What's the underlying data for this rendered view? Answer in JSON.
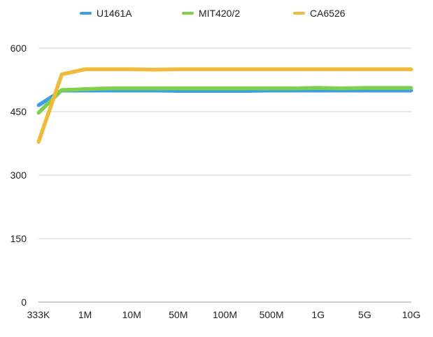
{
  "chart_data": {
    "type": "line",
    "title": "",
    "xlabel": "",
    "ylabel": "",
    "categories": [
      "333K",
      "",
      "1M",
      "",
      "10M",
      "",
      "50M",
      "",
      "100M",
      "",
      "500M",
      "",
      "1G",
      "",
      "5G",
      "",
      "10G"
    ],
    "ylim": [
      0,
      600
    ],
    "yticks": [
      0,
      150,
      300,
      450,
      600
    ],
    "grid": true,
    "legend_position": "top",
    "series": [
      {
        "name": "U1461A",
        "color": "#3d9ee8",
        "values": [
          465,
          500,
          500,
          500,
          500,
          500,
          499,
          499,
          499,
          499,
          500,
          500,
          500,
          500,
          500,
          500,
          500
        ]
      },
      {
        "name": "MIT420/2",
        "color": "#7ed04b",
        "values": [
          447,
          501,
          503,
          505,
          505,
          505,
          505,
          505,
          505,
          505,
          505,
          505,
          506,
          505,
          506,
          506,
          506
        ]
      },
      {
        "name": "CA6526",
        "color": "#f0bb3a",
        "values": [
          378,
          538,
          550,
          550,
          550,
          549,
          550,
          550,
          550,
          550,
          550,
          550,
          550,
          550,
          550,
          550,
          550
        ]
      }
    ]
  }
}
